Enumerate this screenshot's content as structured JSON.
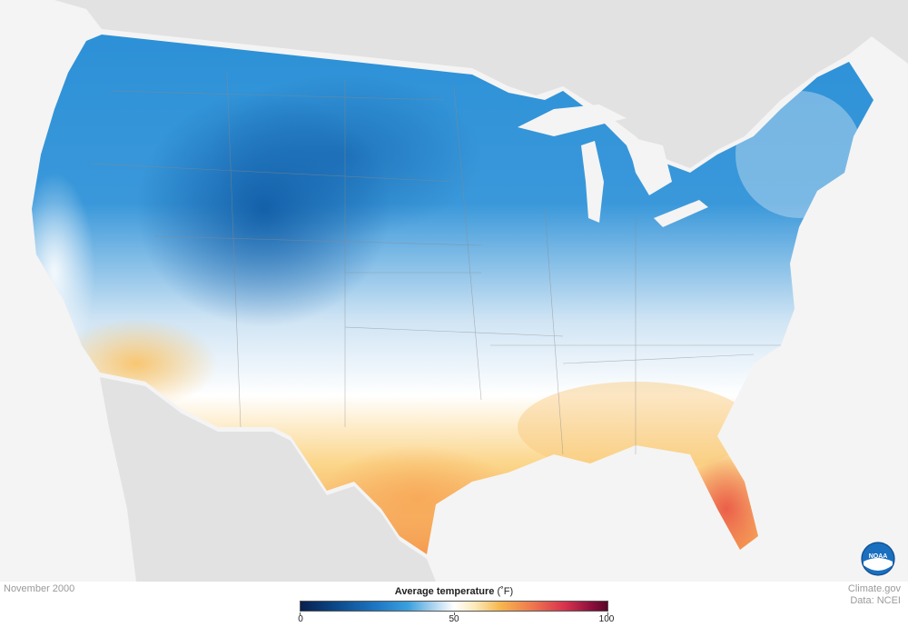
{
  "map": {
    "title": "Average temperature",
    "unit": "(˚F)",
    "period": "November 2000"
  },
  "legend": {
    "min": "0",
    "mid": "50",
    "max": "100"
  },
  "credits": {
    "line1": "Climate.gov",
    "line2": "Data: NCEI"
  },
  "logo": {
    "text": "NOAA"
  },
  "colors": {
    "cold_dark": "#0b4a8c",
    "cold": "#2a8fd6",
    "cool": "#a9d2ee",
    "neutral": "#ffffff",
    "warm": "#f6b74e",
    "hot": "#ef6a4a",
    "ocean": "#f4f4f4",
    "land_outside": "#dcdcdc"
  }
}
